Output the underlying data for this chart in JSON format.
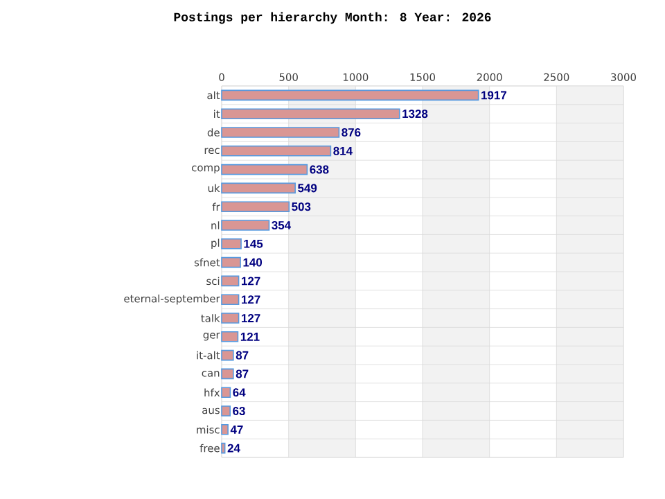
{
  "chart_data": {
    "type": "bar",
    "orientation": "horizontal",
    "title": "Postings per hierarchy Month: 8 Year: 2026",
    "categories": [
      "alt",
      "it",
      "de",
      "rec",
      "comp",
      "uk",
      "fr",
      "nl",
      "pl",
      "sfnet",
      "sci",
      "eternal-september",
      "talk",
      "ger",
      "it-alt",
      "can",
      "hfx",
      "aus",
      "misc",
      "free"
    ],
    "values": [
      1917,
      1328,
      876,
      814,
      638,
      549,
      503,
      354,
      145,
      140,
      127,
      127,
      127,
      121,
      87,
      87,
      64,
      63,
      47,
      24
    ],
    "color": "#d99694",
    "xlim": [
      0,
      3000
    ],
    "xticks": [
      0,
      500,
      1000,
      1500,
      2000,
      2500,
      3000
    ],
    "bands": [
      {
        "axis": "x",
        "from": 500,
        "to": 1000,
        "color": "#f2f2f2"
      },
      {
        "axis": "x",
        "from": 1500,
        "to": 2000,
        "color": "#f2f2f2"
      },
      {
        "axis": "x",
        "from": 2500,
        "to": 3000,
        "color": "#f2f2f2"
      }
    ],
    "grid": true,
    "data_labels": true
  }
}
